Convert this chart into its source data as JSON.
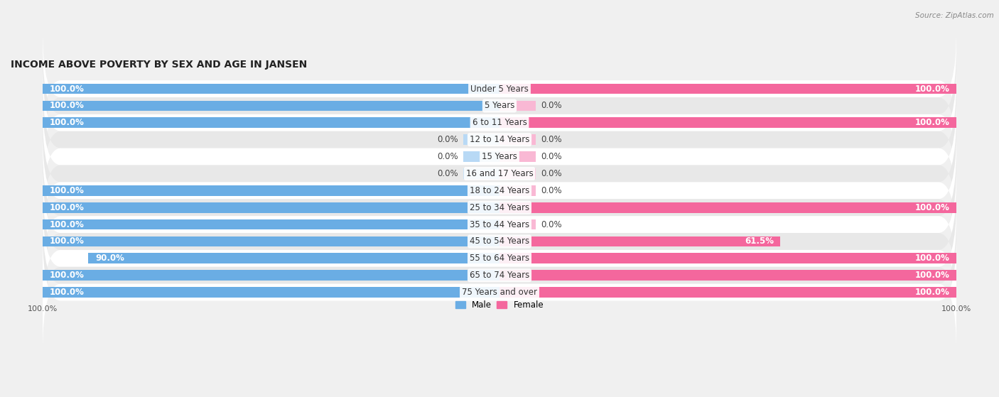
{
  "title": "INCOME ABOVE POVERTY BY SEX AND AGE IN JANSEN",
  "source": "Source: ZipAtlas.com",
  "categories": [
    "Under 5 Years",
    "5 Years",
    "6 to 11 Years",
    "12 to 14 Years",
    "15 Years",
    "16 and 17 Years",
    "18 to 24 Years",
    "25 to 34 Years",
    "35 to 44 Years",
    "45 to 54 Years",
    "55 to 64 Years",
    "65 to 74 Years",
    "75 Years and over"
  ],
  "male": [
    100.0,
    100.0,
    100.0,
    0.0,
    0.0,
    0.0,
    100.0,
    100.0,
    100.0,
    100.0,
    90.0,
    100.0,
    100.0
  ],
  "female": [
    100.0,
    0.0,
    100.0,
    0.0,
    0.0,
    0.0,
    0.0,
    100.0,
    0.0,
    61.5,
    100.0,
    100.0,
    100.0
  ],
  "male_color": "#6aade4",
  "male_stub_color": "#b8d9f5",
  "female_color": "#f4679d",
  "female_stub_color": "#f9b8d4",
  "background_color": "#f0f0f0",
  "row_bg_light": "#ffffff",
  "row_bg_dark": "#e8e8e8",
  "title_fontsize": 10,
  "label_fontsize": 8.5,
  "value_fontsize": 8.5,
  "axis_label_fontsize": 8,
  "legend_label_male": "Male",
  "legend_label_female": "Female",
  "stub_size": 8.0,
  "max_val": 100.0
}
